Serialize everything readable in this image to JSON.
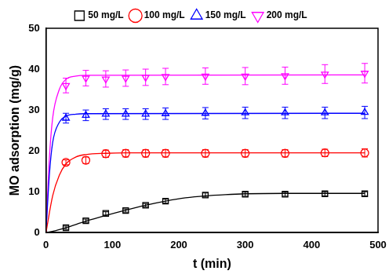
{
  "chart_data": {
    "type": "scatter",
    "x_label": "t (min)",
    "y_label": "MO adsorption (mg/g)",
    "xlim": [
      0,
      500
    ],
    "xticks": [
      0,
      100,
      200,
      300,
      400,
      500
    ],
    "ylim": [
      0,
      50
    ],
    "yticks": [
      0,
      10,
      20,
      30,
      40,
      50
    ],
    "grid": false,
    "legend": "top",
    "series": [
      {
        "name": "50 mg/L",
        "color": "#000000",
        "marker": "square",
        "x": [
          30,
          60,
          90,
          120,
          150,
          180,
          240,
          300,
          360,
          420,
          480
        ],
        "values": [
          1.2,
          2.9,
          4.7,
          5.4,
          6.7,
          7.7,
          9.2,
          9.4,
          9.4,
          9.5,
          9.5
        ],
        "errors": [
          0.4,
          0.4,
          0.4,
          0.4,
          0.4,
          0.5,
          0.5,
          0.5,
          0.5,
          0.5,
          0.5
        ],
        "fit": {
          "x": [
            0,
            15,
            30,
            60,
            90,
            120,
            150,
            180,
            210,
            240,
            270,
            300,
            360,
            420,
            480
          ],
          "values": [
            0,
            0.5,
            1.2,
            2.8,
            4.2,
            5.5,
            6.7,
            7.7,
            8.5,
            9.0,
            9.3,
            9.5,
            9.6,
            9.6,
            9.6
          ]
        }
      },
      {
        "name": "100 mg/L",
        "color": "#ff0000",
        "marker": "circle",
        "x": [
          30,
          60,
          90,
          120,
          150,
          180,
          240,
          300,
          360,
          420,
          480
        ],
        "values": [
          17.2,
          17.7,
          19.3,
          19.4,
          19.4,
          19.4,
          19.4,
          19.4,
          19.4,
          19.5,
          19.5
        ],
        "errors": [
          0.6,
          0.8,
          0.9,
          0.9,
          0.9,
          0.9,
          0.9,
          0.9,
          0.9,
          0.9,
          1.0
        ],
        "fit": {
          "x": [
            0,
            10,
            20,
            30,
            45,
            60,
            90,
            120,
            480
          ],
          "values": [
            0,
            9,
            14,
            16.8,
            18.5,
            19.1,
            19.4,
            19.5,
            19.5
          ]
        }
      },
      {
        "name": "150 mg/L",
        "color": "#0000ff",
        "marker": "triangle-up",
        "x": [
          30,
          60,
          90,
          120,
          150,
          180,
          240,
          300,
          360,
          420,
          480
        ],
        "values": [
          28.0,
          28.7,
          29.0,
          29.0,
          29.0,
          29.1,
          29.2,
          29.3,
          29.3,
          29.3,
          29.4
        ],
        "errors": [
          1.2,
          1.3,
          1.3,
          1.3,
          1.3,
          1.4,
          1.4,
          1.4,
          1.4,
          1.4,
          1.5
        ],
        "fit": {
          "x": [
            0,
            5,
            10,
            20,
            30,
            45,
            60,
            480
          ],
          "values": [
            0,
            14,
            22,
            27,
            28.5,
            29,
            29.1,
            29.2
          ]
        }
      },
      {
        "name": "200 mg/L",
        "color": "#ff00ff",
        "marker": "triangle-down",
        "x": [
          30,
          60,
          90,
          120,
          150,
          180,
          240,
          300,
          360,
          420,
          480
        ],
        "values": [
          36.0,
          37.8,
          37.6,
          37.8,
          38.0,
          38.2,
          38.3,
          38.3,
          38.4,
          38.8,
          39.0
        ],
        "errors": [
          1.8,
          1.9,
          2.0,
          2.0,
          2.0,
          2.0,
          2.0,
          2.1,
          2.1,
          2.3,
          2.4
        ],
        "fit": {
          "x": [
            0,
            5,
            10,
            20,
            30,
            45,
            60,
            480
          ],
          "values": [
            0,
            18,
            28,
            35,
            37.5,
            38.3,
            38.5,
            38.6
          ]
        }
      }
    ]
  }
}
